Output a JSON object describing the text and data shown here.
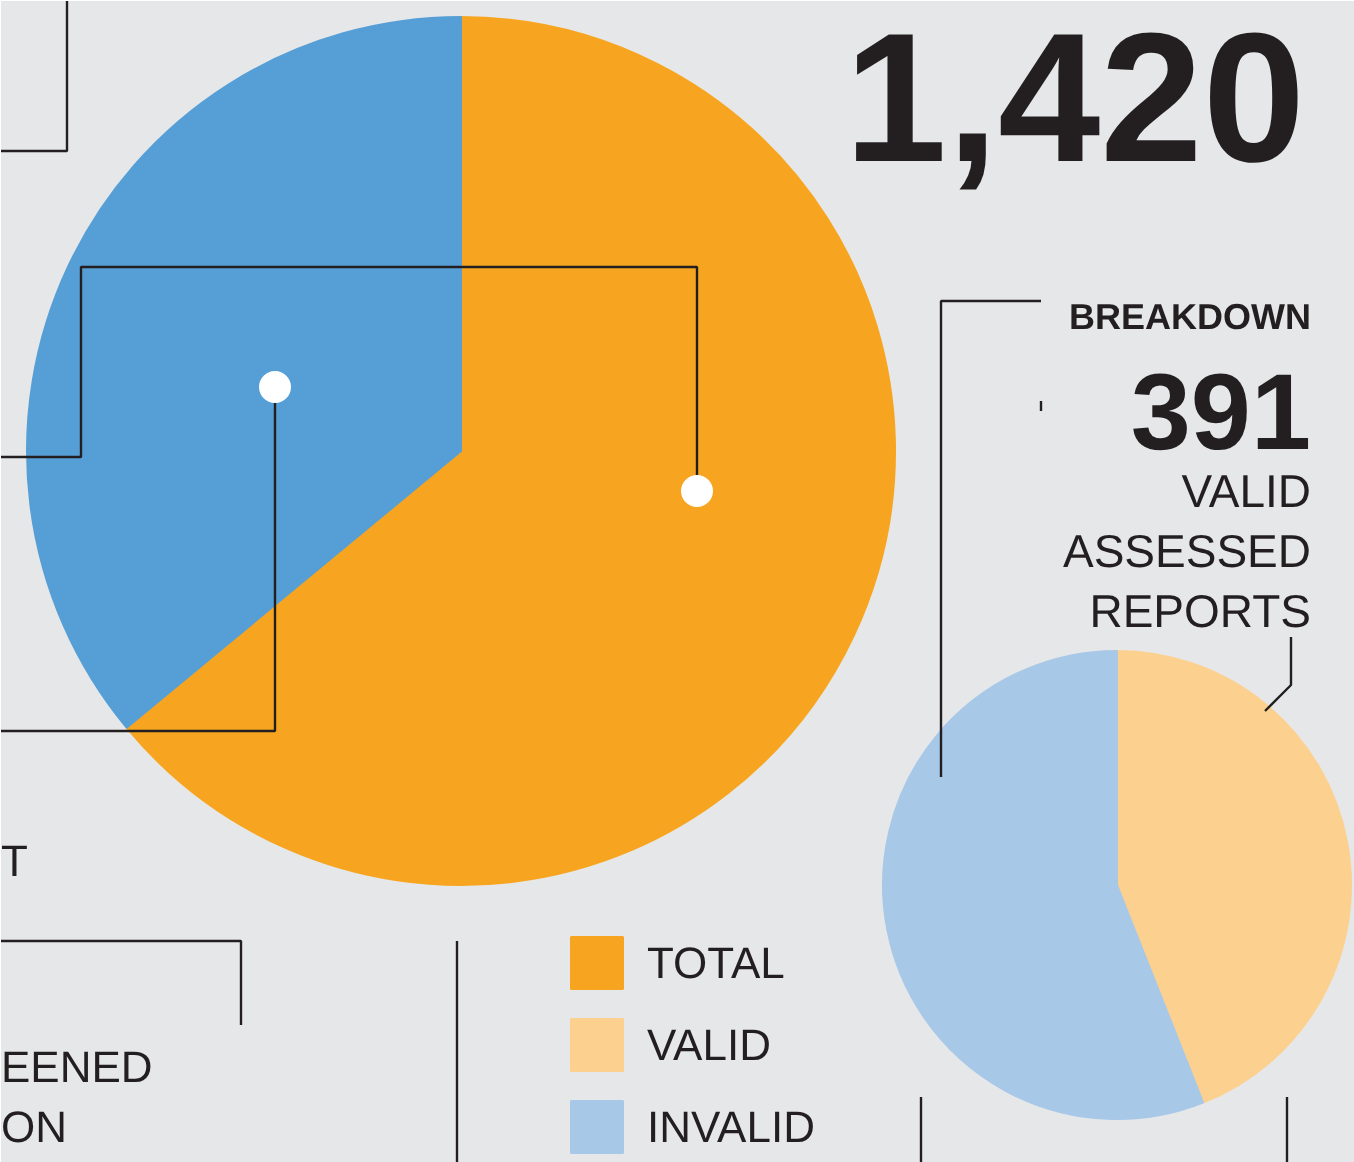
{
  "chart_data": [
    {
      "type": "pie",
      "categories": [
        "TOTAL",
        null
      ],
      "values": [
        64,
        36
      ],
      "colors": [
        "#f7a520",
        "#569fd6"
      ],
      "legend": "bottom",
      "annotations": [
        "1,420",
        "T",
        "EENED",
        "ON"
      ]
    },
    {
      "type": "pie",
      "title": "BREAKDOWN",
      "subtitle": "391",
      "categories": [
        "VALID",
        "INVALID"
      ],
      "values": [
        44,
        56
      ],
      "colors": [
        "#fcd08f",
        "#a8c8e8"
      ],
      "legend": "bottom",
      "annotations": [
        "VALID ASSESSED REPORTS"
      ]
    }
  ]
}
